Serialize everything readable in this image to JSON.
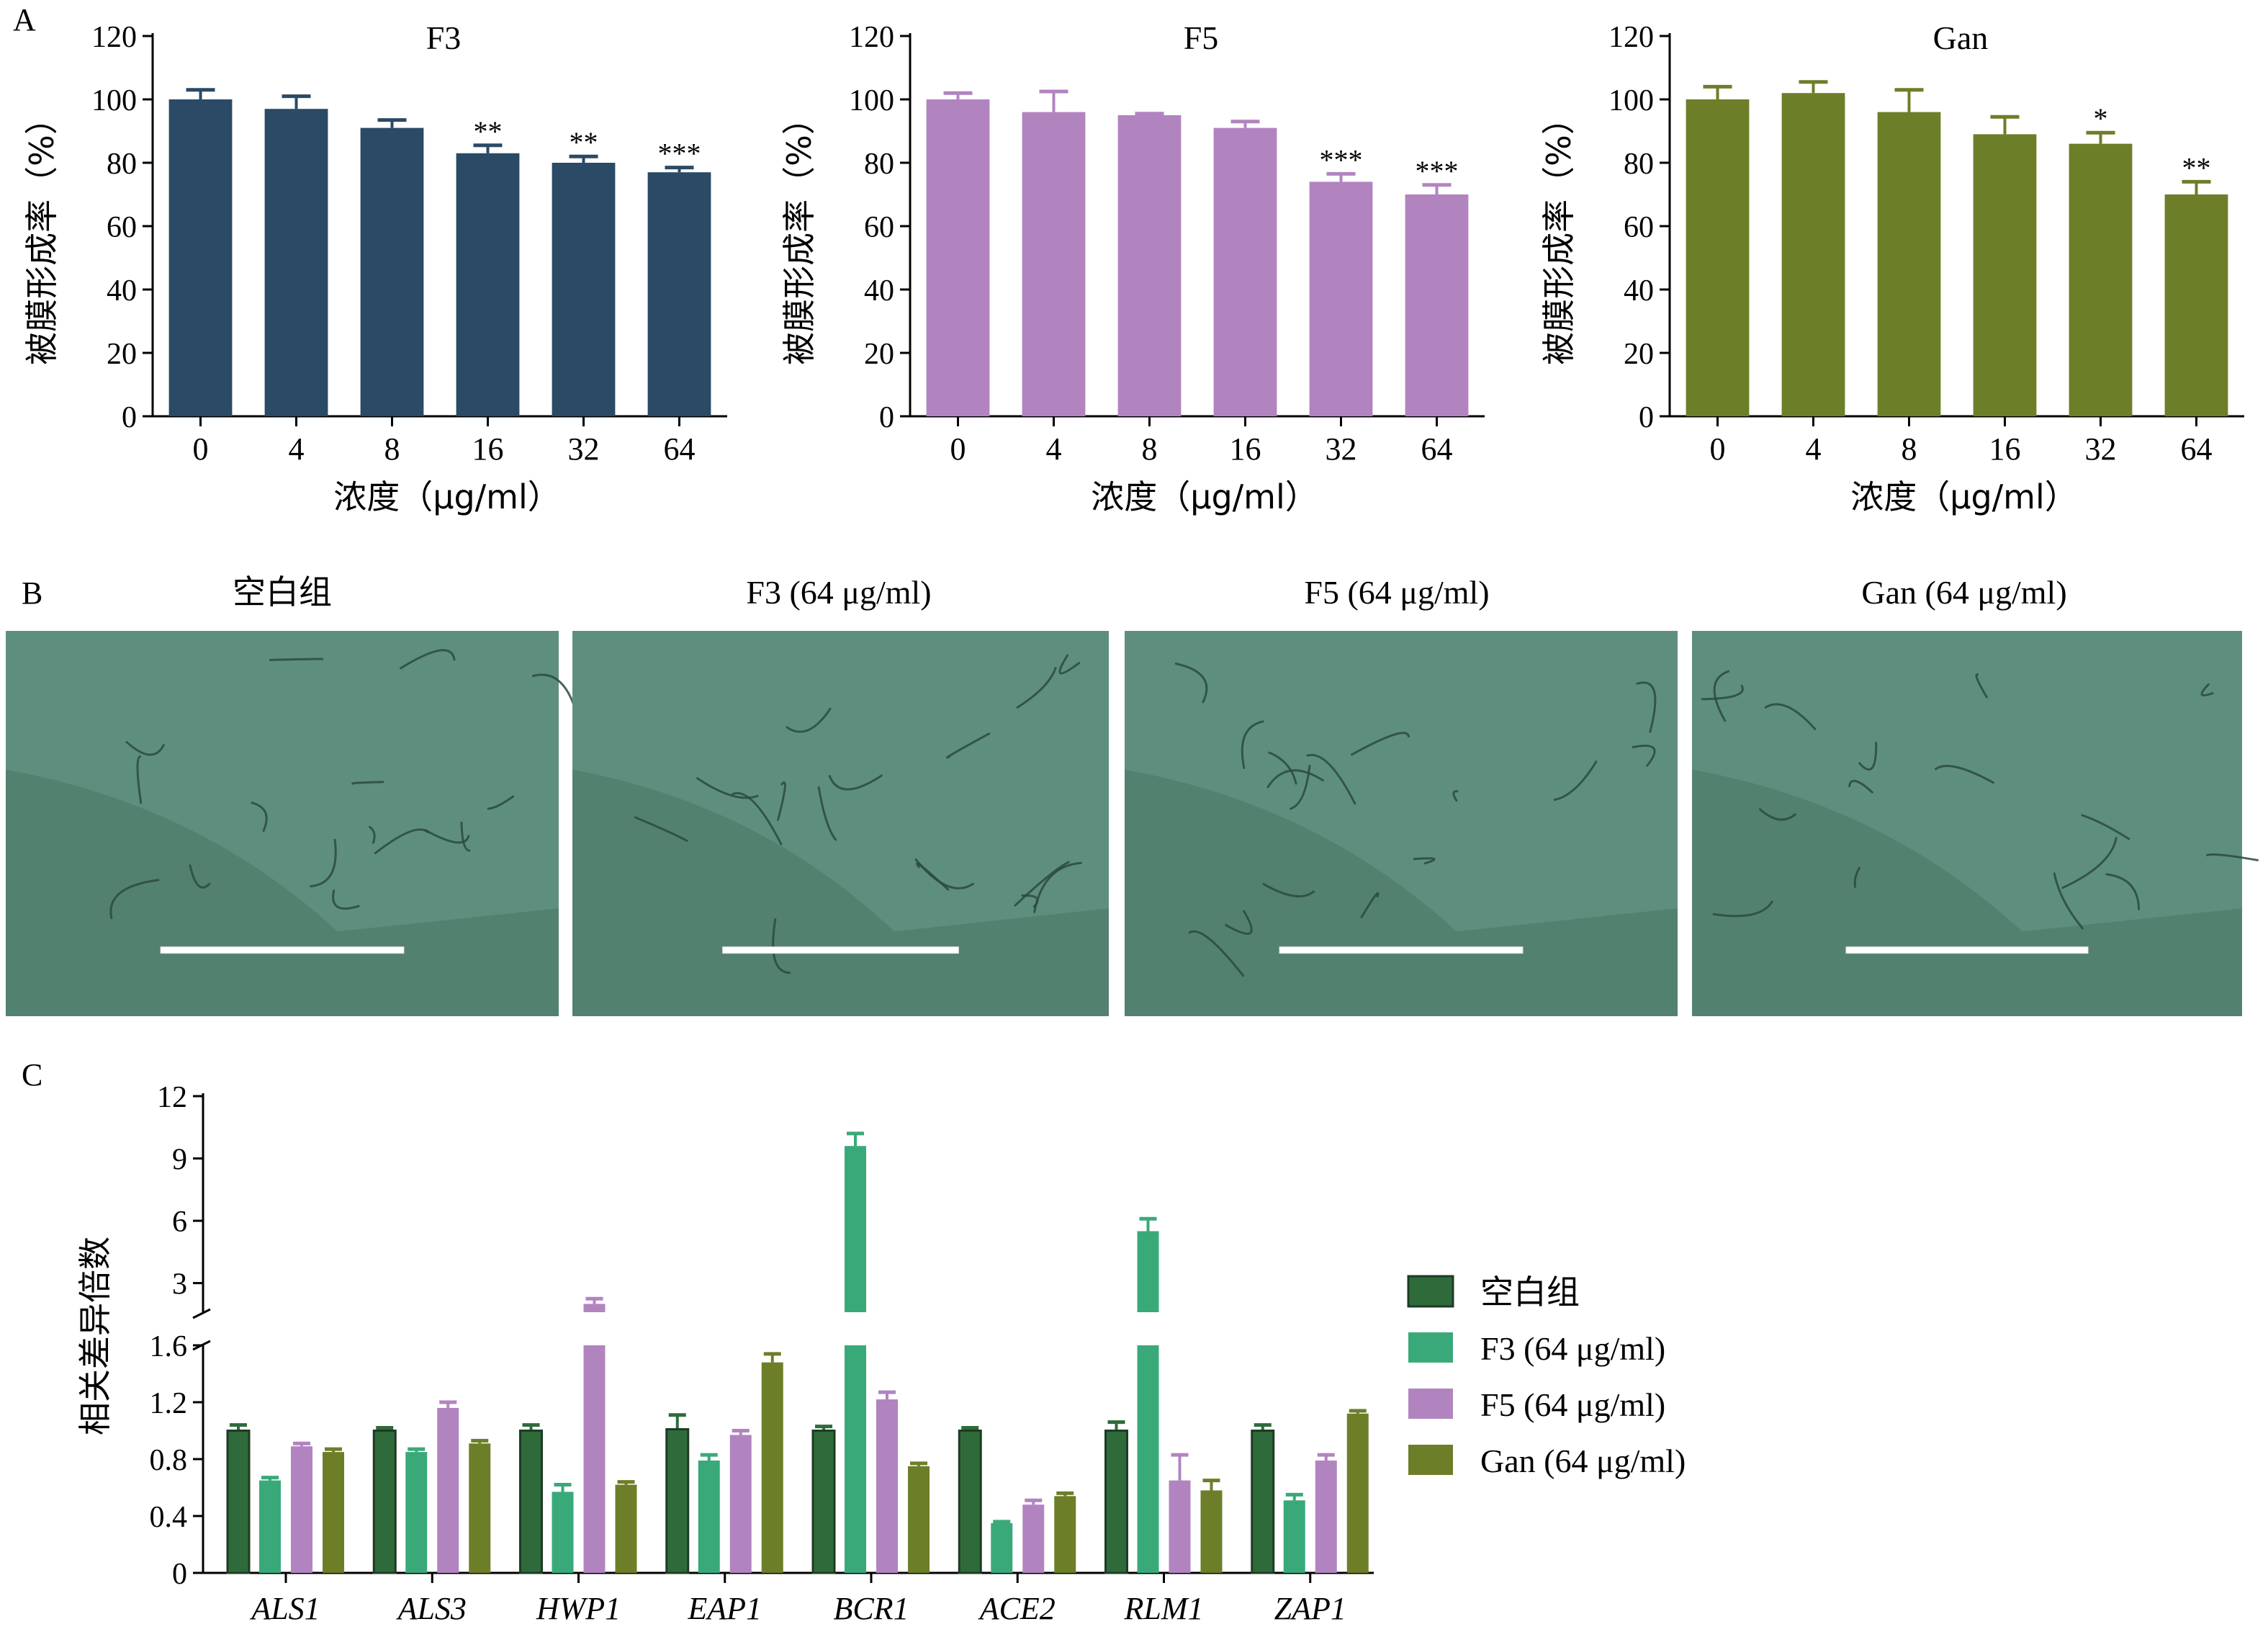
{
  "panel_labels": {
    "a": "A",
    "b": "B",
    "c": "C"
  },
  "colors": {
    "f3_navy": "#2a4a65",
    "f5_purple": "#b184c0",
    "gan_olive": "#6d7e29",
    "blank_dkgreen": "#2f6b3a",
    "f3_green": "#3aa97a",
    "image_bg": "#5e8f7e"
  },
  "chart_data": [
    {
      "type": "bar",
      "title": "F3",
      "xlabel": "浓度（μg/ml）",
      "ylabel": "被膜形成率（%）",
      "categories": [
        "0",
        "4",
        "8",
        "16",
        "32",
        "64"
      ],
      "values": [
        100,
        97,
        91,
        83,
        80,
        77
      ],
      "errors": [
        3,
        4,
        2.5,
        2.5,
        2,
        1.5
      ],
      "significance": [
        "",
        "",
        "",
        "**",
        "**",
        "***"
      ],
      "ylim": [
        0,
        120
      ],
      "yticks": [
        "0",
        "20",
        "40",
        "60",
        "80",
        "100",
        "120"
      ]
    },
    {
      "type": "bar",
      "title": "F5",
      "xlabel": "浓度（μg/ml）",
      "ylabel": "被膜形成率（%）",
      "categories": [
        "0",
        "4",
        "8",
        "16",
        "32",
        "64"
      ],
      "values": [
        100,
        96,
        95,
        91,
        74,
        70
      ],
      "errors": [
        2,
        6.5,
        0.5,
        2,
        2.5,
        3
      ],
      "significance": [
        "",
        "",
        "",
        "",
        "***",
        "***"
      ],
      "ylim": [
        0,
        120
      ],
      "yticks": [
        "0",
        "20",
        "40",
        "60",
        "80",
        "100",
        "120"
      ]
    },
    {
      "type": "bar",
      "title": "Gan",
      "xlabel": "浓度（μg/ml）",
      "ylabel": "被膜形成率（%）",
      "categories": [
        "0",
        "4",
        "8",
        "16",
        "32",
        "64"
      ],
      "values": [
        100,
        102,
        96,
        89,
        86,
        70
      ],
      "errors": [
        4,
        3.5,
        7,
        5.5,
        3.5,
        4
      ],
      "significance": [
        "",
        "",
        "",
        "",
        "*",
        "**"
      ],
      "ylim": [
        0,
        120
      ],
      "yticks": [
        "0",
        "20",
        "40",
        "60",
        "80",
        "100",
        "120"
      ]
    },
    {
      "type": "bar",
      "title": "",
      "xlabel": "",
      "ylabel": "相关差异倍数",
      "categories": [
        "ALS1",
        "ALS3",
        "HWP1",
        "EAP1",
        "BCR1",
        "ACE2",
        "RLM1",
        "ZAP1"
      ],
      "axis_break": {
        "lower_range": [
          0,
          1.6
        ],
        "upper_range": [
          1.6,
          12
        ]
      },
      "yticks_lower": [
        "0",
        "0.4",
        "0.8",
        "1.2",
        "1.6"
      ],
      "yticks_upper": [
        "3",
        "6",
        "9",
        "12"
      ],
      "series": [
        {
          "name": "空白组",
          "values": [
            1.0,
            1.0,
            1.0,
            1.01,
            1.0,
            1.0,
            1.0,
            1.0
          ],
          "errors": [
            0.04,
            0.02,
            0.04,
            0.1,
            0.03,
            0.02,
            0.06,
            0.04
          ]
        },
        {
          "name": "F3 (64 μg/ml)",
          "values": [
            0.65,
            0.85,
            0.57,
            0.79,
            9.6,
            0.35,
            5.5,
            0.51
          ],
          "errors": [
            0.02,
            0.02,
            0.05,
            0.04,
            0.6,
            0.01,
            0.6,
            0.04
          ]
        },
        {
          "name": "F5 (64 μg/ml)",
          "values": [
            0.89,
            1.16,
            2.0,
            0.97,
            1.22,
            0.48,
            0.65,
            0.79
          ],
          "errors": [
            0.02,
            0.04,
            0.25,
            0.03,
            0.05,
            0.03,
            0.18,
            0.04
          ]
        },
        {
          "name": "Gan (64 μg/ml)",
          "values": [
            0.85,
            0.91,
            0.62,
            1.48,
            0.75,
            0.54,
            0.58,
            1.12
          ],
          "errors": [
            0.02,
            0.02,
            0.02,
            0.06,
            0.02,
            0.02,
            0.07,
            0.02
          ]
        }
      ]
    }
  ],
  "micrographs": {
    "labels": [
      "空白组",
      "F3 (64 μg/ml)",
      "F5 (64 μg/ml)",
      "Gan (64 μg/ml)"
    ]
  }
}
